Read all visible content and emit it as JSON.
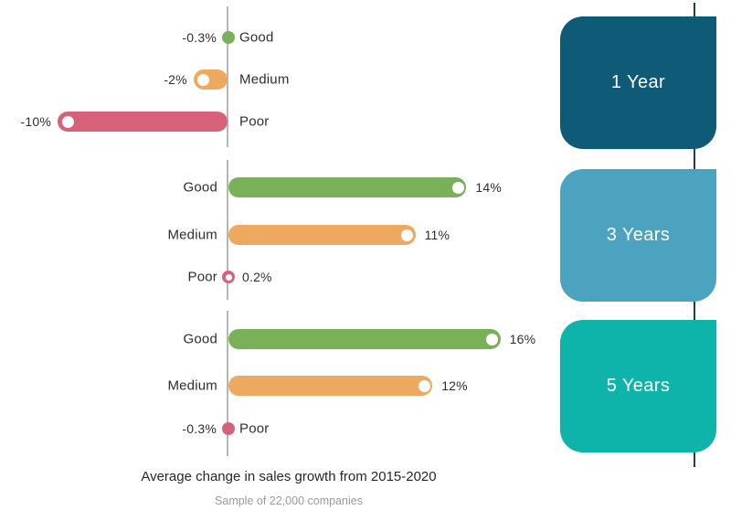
{
  "title": "Average change in sales growth from 2015-2020",
  "subtitle": "Sample of 22,000 companies",
  "colors": {
    "good": "#79B159",
    "medium": "#EDA95F",
    "poor": "#D8617A",
    "axis_line": "#B5B5B5",
    "timeline": "#1A4057",
    "label_text": "#2E2E2E",
    "title_text": "#262626",
    "subtitle_text": "#9B9B9B",
    "card_text": "#FFFFFF"
  },
  "chart_data": {
    "type": "bar",
    "orientation": "horizontal",
    "value_unit": "%",
    "axis_baseline": 0,
    "xlabel": "",
    "ylabel": "",
    "legend": "none",
    "categories": [
      "Good",
      "Medium",
      "Poor"
    ],
    "groups": [
      {
        "label": "1 Year",
        "card_color": "#0E5A77",
        "rows": [
          {
            "category": "Good",
            "value": -0.3,
            "display": "-0.3%"
          },
          {
            "category": "Medium",
            "value": -2,
            "display": "-2%"
          },
          {
            "category": "Poor",
            "value": -10,
            "display": "-10%"
          }
        ]
      },
      {
        "label": "3 Years",
        "card_color": "#4BA3C0",
        "rows": [
          {
            "category": "Good",
            "value": 14,
            "display": "14%"
          },
          {
            "category": "Medium",
            "value": 11,
            "display": "11%"
          },
          {
            "category": "Poor",
            "value": 0.2,
            "display": "0.2%"
          }
        ]
      },
      {
        "label": "5 Years",
        "card_color": "#0EB4AA",
        "rows": [
          {
            "category": "Good",
            "value": 16,
            "display": "16%"
          },
          {
            "category": "Medium",
            "value": 12,
            "display": "12%"
          },
          {
            "category": "Poor",
            "value": -0.3,
            "display": "-0.3%"
          }
        ]
      }
    ]
  }
}
